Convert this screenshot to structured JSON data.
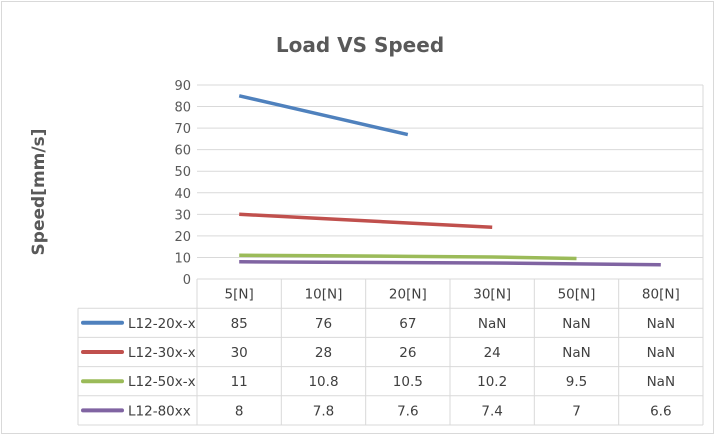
{
  "chart_data": {
    "type": "line",
    "title": "Load VS Speed",
    "xlabel": "",
    "ylabel": "Speed[mm/s]",
    "ylim": [
      0,
      90
    ],
    "yticks": [
      0,
      10,
      20,
      30,
      40,
      50,
      60,
      70,
      80,
      90
    ],
    "grid": true,
    "legend": "data-table",
    "categories": [
      "5[N]",
      "10[N]",
      "20[N]",
      "30[N]",
      "50[N]",
      "80[N]"
    ],
    "series": [
      {
        "name": "L12-20x-x",
        "color": "#4f81bd",
        "values": [
          85,
          76,
          67,
          null,
          null,
          null
        ],
        "labels": [
          "85",
          "76",
          "67",
          "NaN",
          "NaN",
          "NaN"
        ]
      },
      {
        "name": "L12-30x-x",
        "color": "#c0504d",
        "values": [
          30,
          28,
          26,
          24,
          null,
          null
        ],
        "labels": [
          "30",
          "28",
          "26",
          "24",
          "NaN",
          "NaN"
        ]
      },
      {
        "name": "L12-50x-x",
        "color": "#9bbb59",
        "values": [
          11,
          10.8,
          10.5,
          10.2,
          9.5,
          null
        ],
        "labels": [
          "11",
          "10.8",
          "10.5",
          "10.2",
          "9.5",
          "NaN"
        ]
      },
      {
        "name": "L12-80xx",
        "color": "#8064a2",
        "values": [
          8,
          7.8,
          7.6,
          7.4,
          7,
          6.6
        ],
        "labels": [
          "8",
          "7.8",
          "7.6",
          "7.4",
          "7",
          "6.6"
        ]
      }
    ]
  }
}
